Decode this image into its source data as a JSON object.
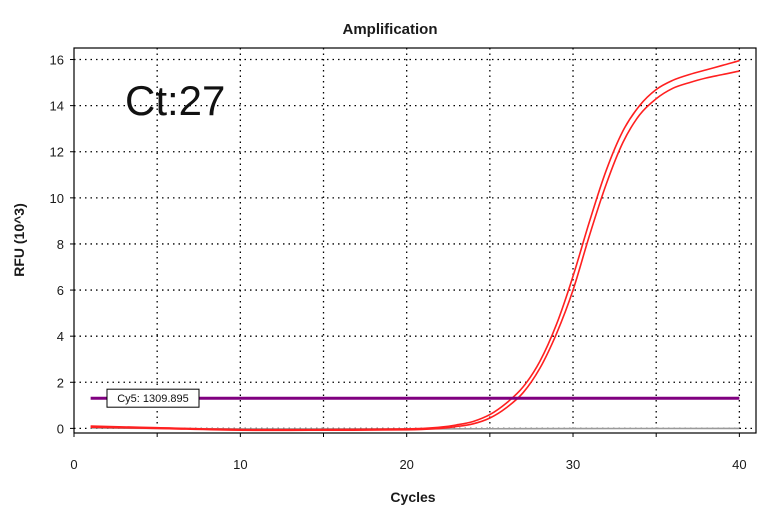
{
  "chart_data": {
    "type": "line",
    "title": "Amplification",
    "xlabel": "Cycles",
    "ylabel": "RFU (10^3)",
    "xlim": [
      0,
      41
    ],
    "ylim": [
      -0.2,
      16.5
    ],
    "xticks": [
      0,
      10,
      20,
      30,
      40
    ],
    "yticks": [
      0,
      2,
      4,
      6,
      8,
      10,
      12,
      14,
      16
    ],
    "grid": true,
    "annotation": "Ct:27",
    "threshold": {
      "label": "Cy5: 1309.895",
      "value": 1.31,
      "color": "#800080"
    },
    "series": [
      {
        "color": "#ff2020",
        "x": [
          1,
          5,
          10,
          15,
          20,
          22,
          23,
          24,
          25,
          26,
          27,
          28,
          29,
          30,
          31,
          32,
          33,
          34,
          35,
          36,
          37,
          38,
          39,
          40
        ],
        "y": [
          0.1,
          0.03,
          -0.05,
          -0.05,
          -0.02,
          0.05,
          0.15,
          0.3,
          0.6,
          1.1,
          1.8,
          2.9,
          4.5,
          6.6,
          9.0,
          11.2,
          12.9,
          14.0,
          14.7,
          15.1,
          15.35,
          15.55,
          15.75,
          15.95
        ]
      },
      {
        "color": "#ff2020",
        "x": [
          1,
          5,
          10,
          15,
          20,
          22,
          23,
          24,
          25,
          26,
          27,
          28,
          29,
          30,
          31,
          32,
          33,
          34,
          35,
          36,
          37,
          38,
          39,
          40
        ],
        "y": [
          0.05,
          0.0,
          -0.08,
          -0.08,
          -0.06,
          0.0,
          0.08,
          0.2,
          0.45,
          0.9,
          1.55,
          2.6,
          4.1,
          6.0,
          8.4,
          10.6,
          12.4,
          13.6,
          14.3,
          14.75,
          15.0,
          15.2,
          15.35,
          15.5
        ]
      },
      {
        "color": "#999999",
        "x": [
          1,
          10,
          20,
          30,
          40
        ],
        "y": [
          0.02,
          -0.02,
          -0.02,
          -0.01,
          0.0
        ]
      }
    ]
  }
}
